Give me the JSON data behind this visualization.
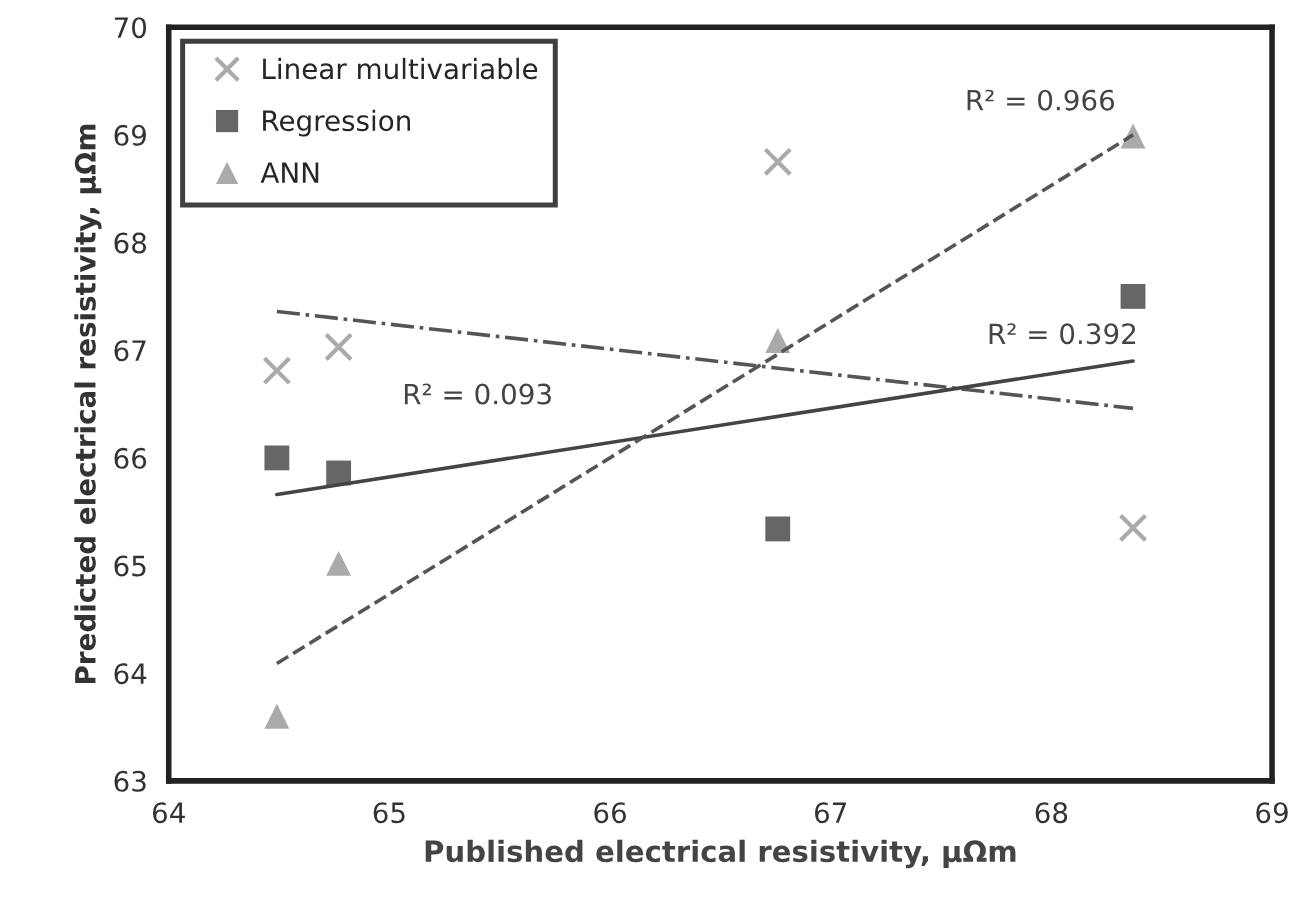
{
  "chart_data": {
    "type": "scatter",
    "xlabel": "Published electrical resistivity, μΩm",
    "ylabel": "Predicted electrical resistivity, μΩm",
    "xlim": [
      64,
      69
    ],
    "xticks": [
      64,
      65,
      66,
      67,
      68,
      69
    ],
    "ylim": [
      63,
      70
    ],
    "yticks": [
      63,
      64,
      65,
      66,
      67,
      68,
      69,
      70
    ],
    "grid": false,
    "legend": "top left",
    "series": [
      {
        "name": "Linear multivariable",
        "color": "#aaaaaa",
        "marker": "cross",
        "x": [
          64.49,
          64.77,
          66.76,
          68.37
        ],
        "values": [
          66.81,
          67.03,
          68.75,
          65.35
        ]
      },
      {
        "name": "Regression",
        "color": "#666666",
        "marker": "square",
        "x": [
          64.49,
          64.77,
          66.76,
          68.37
        ],
        "values": [
          66.0,
          65.86,
          65.34,
          67.5
        ]
      },
      {
        "name": "ANN",
        "color": "#aaaaaa",
        "marker": "triangle",
        "x": [
          64.49,
          64.77,
          66.76,
          68.37
        ],
        "values": [
          63.6,
          65.02,
          67.09,
          68.99
        ]
      },
      {
        "type": "line",
        "color": "#555555",
        "marker": "none",
        "line_style": "dashdot",
        "x": [
          64.49,
          68.37
        ],
        "values": [
          67.36,
          66.46
        ]
      },
      {
        "type": "line",
        "color": "#444444",
        "marker": "none",
        "line_style": "solid",
        "x": [
          64.49,
          68.37
        ],
        "values": [
          65.66,
          66.9
        ]
      },
      {
        "type": "line",
        "color": "#555555",
        "marker": "none",
        "line_style": "dashed",
        "x": [
          64.49,
          68.37
        ],
        "values": [
          64.09,
          69.0
        ]
      }
    ],
    "annotations": [
      "R² = 0.966",
      "R² = 0.392",
      "R² = 0.093"
    ]
  }
}
